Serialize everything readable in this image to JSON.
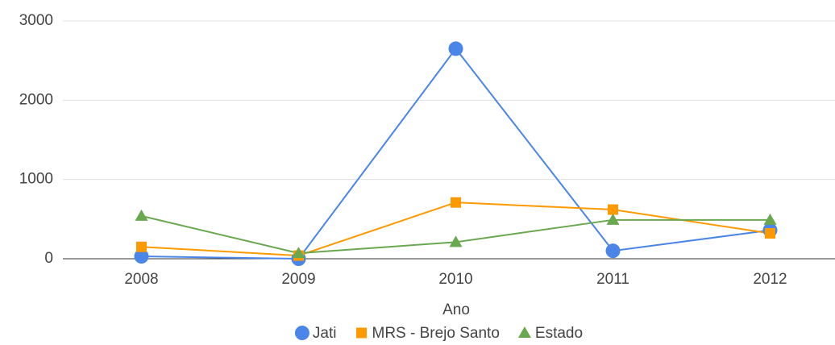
{
  "chart_data": {
    "type": "line",
    "x_label": "Ano",
    "categories": [
      "2008",
      "2009",
      "2010",
      "2011",
      "2012"
    ],
    "series": [
      {
        "name": "Jati",
        "color": "#4a86e8",
        "marker": "circle",
        "values": [
          30,
          0,
          2650,
          100,
          360
        ]
      },
      {
        "name": "MRS - Brejo Santo",
        "color": "#ff9900",
        "marker": "square",
        "values": [
          150,
          40,
          710,
          620,
          320
        ]
      },
      {
        "name": "Estado",
        "color": "#6aa84f",
        "marker": "triangle",
        "values": [
          540,
          70,
          210,
          490,
          490
        ]
      }
    ],
    "ylim": [
      0,
      3000
    ],
    "yticks": [
      0,
      1000,
      2000,
      3000
    ],
    "grid": true,
    "legend": "bottom"
  }
}
